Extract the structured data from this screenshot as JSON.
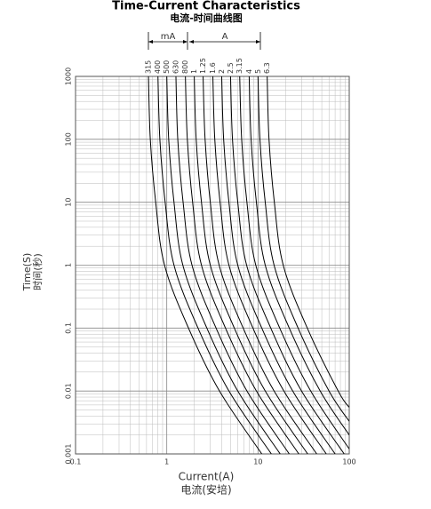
{
  "chart_data": {
    "type": "line",
    "title": "Time-Current Characteristics",
    "subtitle": "电流-时间曲线图",
    "x_label": "Current(A)",
    "x_label_2": "电流(安培)",
    "y_label": "Time(S)",
    "y_label_2": "时间(秒)",
    "annotations": [
      {
        "text": "mA"
      },
      {
        "text": "A"
      }
    ],
    "log_x": true,
    "log_y": true,
    "grid": true,
    "color": "#000000",
    "xlim": [
      0.1,
      100
    ],
    "ylim": [
      0.001,
      1000
    ],
    "xticks": [
      0.1,
      1,
      10,
      100
    ],
    "yticks": [
      0.001,
      0.01,
      0.1,
      1,
      10,
      100,
      1000
    ],
    "xminorticks": [
      0.2,
      0.3,
      0.4,
      0.5,
      0.6,
      0.7,
      0.8,
      0.9,
      2,
      3,
      4,
      5,
      6,
      7,
      8,
      9,
      20,
      30,
      40,
      50,
      60,
      70,
      80,
      90
    ],
    "yminorticks": [
      0.002,
      0.003,
      0.004,
      0.005,
      0.006,
      0.007,
      0.008,
      0.009,
      0.02,
      0.03,
      0.04,
      0.05,
      0.06,
      0.07,
      0.08,
      0.09,
      0.2,
      0.3,
      0.4,
      0.5,
      0.6,
      0.7,
      0.8,
      0.9,
      2,
      3,
      4,
      5,
      6,
      7,
      8,
      9,
      20,
      30,
      40,
      50,
      60,
      70,
      80,
      90,
      200,
      300,
      400,
      500,
      600,
      700,
      800,
      900
    ],
    "series": [
      {
        "name": "315",
        "x": [
          0.63,
          0.66,
          0.756,
          0.945,
          1.73,
          3.78,
          11
        ],
        "values": [
          1000,
          100,
          10,
          1,
          0.1,
          0.01,
          0.001
        ]
      },
      {
        "name": "400",
        "x": [
          0.8,
          0.84,
          0.96,
          1.2,
          2.2,
          4.8,
          14
        ],
        "values": [
          1000,
          100,
          10,
          1,
          0.1,
          0.01,
          0.001
        ]
      },
      {
        "name": "500",
        "x": [
          1,
          1.05,
          1.2,
          1.5,
          2.75,
          6,
          17.5
        ],
        "values": [
          1000,
          100,
          10,
          1,
          0.1,
          0.01,
          0.001
        ]
      },
      {
        "name": "630",
        "x": [
          1.26,
          1.32,
          1.51,
          1.89,
          3.47,
          7.56,
          22
        ],
        "values": [
          1000,
          100,
          10,
          1,
          0.1,
          0.01,
          0.001
        ]
      },
      {
        "name": "800",
        "x": [
          1.6,
          1.68,
          1.92,
          2.4,
          4.4,
          9.6,
          28
        ],
        "values": [
          1000,
          100,
          10,
          1,
          0.1,
          0.01,
          0.001
        ]
      },
      {
        "name": "1",
        "x": [
          2,
          2.1,
          2.4,
          3,
          5.5,
          12,
          35
        ],
        "values": [
          1000,
          100,
          10,
          1,
          0.1,
          0.01,
          0.001
        ]
      },
      {
        "name": "1.25",
        "x": [
          2.5,
          2.63,
          3,
          3.75,
          6.88,
          15,
          44
        ],
        "values": [
          1000,
          100,
          10,
          1,
          0.1,
          0.01,
          0.001
        ]
      },
      {
        "name": "1.6",
        "x": [
          3.2,
          3.36,
          3.84,
          4.8,
          8.8,
          19.2,
          56
        ],
        "values": [
          1000,
          100,
          10,
          1,
          0.1,
          0.01,
          0.001
        ]
      },
      {
        "name": "2",
        "x": [
          4,
          4.2,
          4.8,
          6,
          11,
          24,
          70
        ],
        "values": [
          1000,
          100,
          10,
          1,
          0.1,
          0.01,
          0.001
        ]
      },
      {
        "name": "2.5",
        "x": [
          5,
          5.25,
          6,
          7.5,
          13.8,
          30,
          88
        ],
        "values": [
          1000,
          100,
          10,
          1,
          0.1,
          0.01,
          0.001
        ]
      },
      {
        "name": "3.15",
        "x": [
          6.3,
          6.62,
          7.56,
          9.45,
          17.3,
          37.8,
          100
        ],
        "values": [
          1000,
          100,
          10,
          1,
          0.1,
          0.01,
          0.0012
        ]
      },
      {
        "name": "4",
        "x": [
          8,
          8.4,
          9.6,
          12,
          22,
          48,
          100
        ],
        "values": [
          1000,
          100,
          10,
          1,
          0.1,
          0.01,
          0.002
        ]
      },
      {
        "name": "5",
        "x": [
          10,
          10.5,
          12,
          15,
          27.5,
          60,
          100
        ],
        "values": [
          1000,
          100,
          10,
          1,
          0.1,
          0.01,
          0.0033
        ]
      },
      {
        "name": "6.3",
        "x": [
          12.6,
          13.2,
          15.1,
          18.9,
          34.7,
          75.6,
          100
        ],
        "values": [
          1000,
          100,
          10,
          1,
          0.1,
          0.01,
          0.0055
        ]
      }
    ]
  }
}
